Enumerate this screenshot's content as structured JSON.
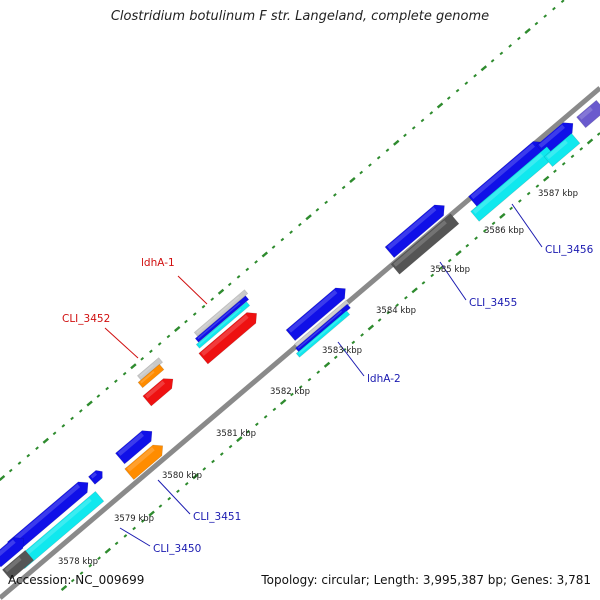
{
  "title": "Clostridium botulinum F str. Langeland, complete genome",
  "footer": {
    "accession": "Accession: NC_009699",
    "summary": "Topology: circular; Length: 3,995,387 bp; Genes: 3,781"
  },
  "colors": {
    "cds_blue": "#1010e8",
    "cds_cyan": "#10e8ee",
    "cds_gray": "#555555",
    "cds_red": "#ee1111",
    "cds_orange": "#ff8c00",
    "cds_purple": "#6a5acd",
    "backbone": "#8a8a8a",
    "tick": "#2e8b2e",
    "label_blue": "#1a1ab0",
    "label_red": "#d01010"
  },
  "ruler": [
    {
      "label": "3578 kbp"
    },
    {
      "label": "3579 kbp"
    },
    {
      "label": "3580 kbp"
    },
    {
      "label": "3581 kbp"
    },
    {
      "label": "3582 kbp"
    },
    {
      "label": "3583 kbp"
    },
    {
      "label": "3584 kbp"
    },
    {
      "label": "3585 kbp"
    },
    {
      "label": "3586 kbp"
    },
    {
      "label": "3587 kbp"
    }
  ],
  "gene_labels": [
    {
      "name": "CLI_3450",
      "color": "blue"
    },
    {
      "name": "CLI_3451",
      "color": "blue"
    },
    {
      "name": "ldhA-2",
      "color": "blue"
    },
    {
      "name": "CLI_3455",
      "color": "blue"
    },
    {
      "name": "CLI_3456",
      "color": "blue"
    },
    {
      "name": "ldhA-1",
      "color": "red"
    },
    {
      "name": "CLI_3452",
      "color": "red"
    }
  ]
}
